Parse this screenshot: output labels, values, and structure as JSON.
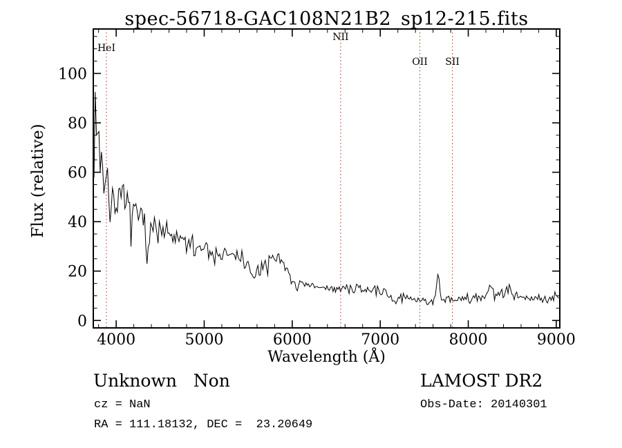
{
  "chart_data": {
    "type": "line",
    "title": "spec-56718-GAC108N21B2_sp12-215.fits",
    "xlabel": "Wavelength (Å)",
    "ylabel": "Flux (relative)",
    "xlim": [
      3740,
      9040
    ],
    "ylim": [
      -3,
      118
    ],
    "xticks": [
      4000,
      5000,
      6000,
      7000,
      8000,
      9000
    ],
    "yticks": [
      0,
      20,
      40,
      60,
      80,
      100
    ],
    "x_minor_step": 200,
    "y_minor_step": 5,
    "grid": false,
    "legend": "none",
    "line_color": "#000000",
    "ref_line_color": "#a14034",
    "ref_lines": [
      {
        "label": "HeI",
        "wavelength": 3889,
        "label_y": 74
      },
      {
        "label": "NII",
        "wavelength": 6550,
        "label_y": 58
      },
      {
        "label": "OII",
        "wavelength": 7450,
        "label_y": 94
      },
      {
        "label": "SII",
        "wavelength": 7820,
        "label_y": 94
      }
    ],
    "series": {
      "name": "spectrum",
      "seed": 7,
      "x_start": 3748,
      "x_end": 9038,
      "sample_step": 14,
      "continuum": [
        [
          3748,
          82
        ],
        [
          3765,
          88
        ],
        [
          3785,
          78
        ],
        [
          3810,
          68
        ],
        [
          3840,
          62
        ],
        [
          3880,
          57
        ],
        [
          3920,
          53
        ],
        [
          3960,
          51
        ],
        [
          4000,
          50
        ],
        [
          4060,
          48
        ],
        [
          4120,
          46
        ],
        [
          4180,
          45
        ],
        [
          4250,
          43
        ],
        [
          4320,
          41
        ],
        [
          4400,
          39
        ],
        [
          4480,
          36
        ],
        [
          4560,
          35
        ],
        [
          4650,
          33
        ],
        [
          4750,
          32
        ],
        [
          4850,
          30.5
        ],
        [
          4950,
          29.5
        ],
        [
          5050,
          28.5
        ],
        [
          5150,
          27.5
        ],
        [
          5250,
          26.5
        ],
        [
          5350,
          26
        ],
        [
          5450,
          24.5
        ],
        [
          5550,
          22
        ],
        [
          5620,
          21.5
        ],
        [
          5700,
          23.5
        ],
        [
          5780,
          25.5
        ],
        [
          5860,
          26
        ],
        [
          5910,
          23
        ],
        [
          5950,
          17.5
        ],
        [
          6000,
          15.5
        ],
        [
          6080,
          14.5
        ],
        [
          6160,
          14
        ],
        [
          6300,
          13.5
        ],
        [
          6450,
          13
        ],
        [
          6600,
          12.8
        ],
        [
          6750,
          12.6
        ],
        [
          6900,
          12.4
        ],
        [
          7000,
          12
        ],
        [
          7100,
          11
        ],
        [
          7200,
          10
        ],
        [
          7300,
          9.2
        ],
        [
          7400,
          8.6
        ],
        [
          7500,
          8.2
        ],
        [
          7620,
          8
        ],
        [
          7720,
          8.4
        ],
        [
          7820,
          8.6
        ],
        [
          7920,
          8.8
        ],
        [
          8020,
          9
        ],
        [
          8120,
          9.4
        ],
        [
          8220,
          9.8
        ],
        [
          8320,
          10
        ],
        [
          8420,
          10.8
        ],
        [
          8520,
          10.4
        ],
        [
          8620,
          9.4
        ],
        [
          8720,
          8.8
        ],
        [
          8820,
          8.8
        ],
        [
          8920,
          9.2
        ],
        [
          9040,
          10
        ]
      ],
      "noise": [
        [
          3748,
          26
        ],
        [
          3790,
          24
        ],
        [
          3830,
          17
        ],
        [
          3880,
          13
        ],
        [
          3950,
          10
        ],
        [
          4050,
          8.5
        ],
        [
          4200,
          8
        ],
        [
          4350,
          9
        ],
        [
          4500,
          7
        ],
        [
          4650,
          6
        ],
        [
          4800,
          5
        ],
        [
          5000,
          4.5
        ],
        [
          5200,
          4
        ],
        [
          5400,
          4
        ],
        [
          5600,
          4.5
        ],
        [
          5800,
          3.5
        ],
        [
          5950,
          3.2
        ],
        [
          6100,
          2.8
        ],
        [
          6300,
          2.4
        ],
        [
          6600,
          2.2
        ],
        [
          7000,
          2.2
        ],
        [
          7400,
          2.2
        ],
        [
          7800,
          2
        ],
        [
          8100,
          2.2
        ],
        [
          8400,
          2.6
        ],
        [
          8700,
          2
        ],
        [
          9040,
          2.8
        ]
      ],
      "emission_spikes": [
        {
          "x": 7655,
          "height": 11,
          "width": 14
        },
        {
          "x": 8255,
          "height": 4,
          "width": 16
        },
        {
          "x": 8465,
          "height": 4.5,
          "width": 18
        }
      ],
      "absorption_dips": [
        {
          "x": 3935,
          "depth": 10,
          "width": 12
        },
        {
          "x": 4345,
          "depth": 13,
          "width": 14
        },
        {
          "x": 5565,
          "depth": 6,
          "width": 28
        },
        {
          "x": 7180,
          "depth": 2.5,
          "width": 30
        }
      ]
    }
  },
  "annotations": {
    "class_label": "Unknown   Non",
    "cz": "cz = NaN",
    "radec": "RA = 111.18132, DEC =  23.20649",
    "survey": "LAMOST DR2",
    "obs_date": "Obs-Date: 20140301"
  }
}
